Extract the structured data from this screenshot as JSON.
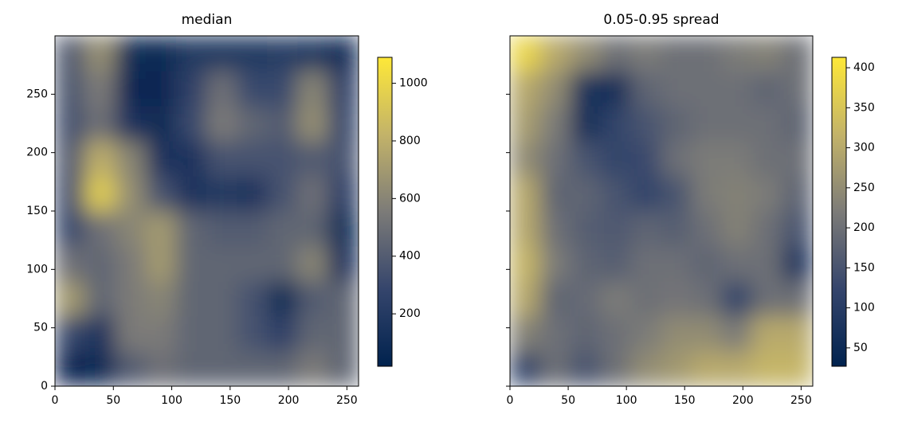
{
  "chart_data": [
    {
      "type": "heatmap",
      "title": "median",
      "colormap": "cividis",
      "origin": "lower",
      "xlim": [
        0,
        260
      ],
      "ylim": [
        0,
        300
      ],
      "xticks": [
        0,
        50,
        100,
        150,
        200,
        250
      ],
      "yticks": [
        0,
        50,
        100,
        150,
        200,
        250
      ],
      "ytick_labels": true,
      "clim": [
        18,
        1090
      ],
      "cticks": [
        200,
        400,
        600,
        800,
        1000
      ],
      "values": [
        [
          60,
          80,
          400,
          500,
          450,
          450,
          450,
          450,
          550,
          450
        ],
        [
          300,
          150,
          550,
          550,
          450,
          450,
          350,
          250,
          450,
          450
        ],
        [
          700,
          450,
          550,
          600,
          450,
          450,
          350,
          100,
          400,
          450
        ],
        [
          500,
          450,
          550,
          700,
          450,
          450,
          450,
          450,
          600,
          150
        ],
        [
          300,
          500,
          600,
          700,
          450,
          400,
          400,
          450,
          450,
          100
        ],
        [
          350,
          950,
          650,
          350,
          150,
          200,
          150,
          350,
          500,
          250
        ],
        [
          400,
          800,
          600,
          150,
          150,
          350,
          350,
          350,
          400,
          350
        ],
        [
          350,
          500,
          150,
          80,
          300,
          550,
          450,
          400,
          650,
          300
        ],
        [
          380,
          550,
          60,
          60,
          250,
          500,
          300,
          300,
          600,
          250
        ],
        [
          400,
          650,
          100,
          80,
          200,
          200,
          200,
          220,
          200,
          120
        ]
      ]
    },
    {
      "type": "heatmap",
      "title": "0.05-0.95 spread",
      "colormap": "cividis",
      "origin": "lower",
      "xlim": [
        0,
        260
      ],
      "ylim": [
        0,
        300
      ],
      "xticks": [
        0,
        50,
        100,
        150,
        200,
        250
      ],
      "yticks": [
        0,
        50,
        100,
        150,
        200,
        250
      ],
      "ytick_labels": false,
      "clim": [
        27,
        413
      ],
      "cticks": [
        50,
        100,
        150,
        200,
        250,
        300,
        350,
        400
      ],
      "values": [
        [
          120,
          200,
          150,
          200,
          250,
          270,
          300,
          300,
          320,
          320
        ],
        [
          230,
          200,
          180,
          200,
          220,
          250,
          250,
          220,
          300,
          300
        ],
        [
          300,
          180,
          190,
          220,
          200,
          210,
          200,
          120,
          200,
          200
        ],
        [
          320,
          220,
          180,
          170,
          200,
          200,
          180,
          200,
          200,
          80
        ],
        [
          300,
          200,
          170,
          160,
          180,
          170,
          200,
          230,
          200,
          150
        ],
        [
          300,
          180,
          180,
          150,
          120,
          150,
          220,
          230,
          220,
          180
        ],
        [
          250,
          200,
          150,
          120,
          130,
          200,
          220,
          220,
          200,
          200
        ],
        [
          280,
          220,
          60,
          120,
          150,
          180,
          200,
          200,
          200,
          180
        ],
        [
          300,
          250,
          70,
          60,
          180,
          200,
          200,
          200,
          180,
          200
        ],
        [
          380,
          300,
          250,
          200,
          220,
          200,
          200,
          220,
          230,
          200
        ]
      ]
    }
  ]
}
